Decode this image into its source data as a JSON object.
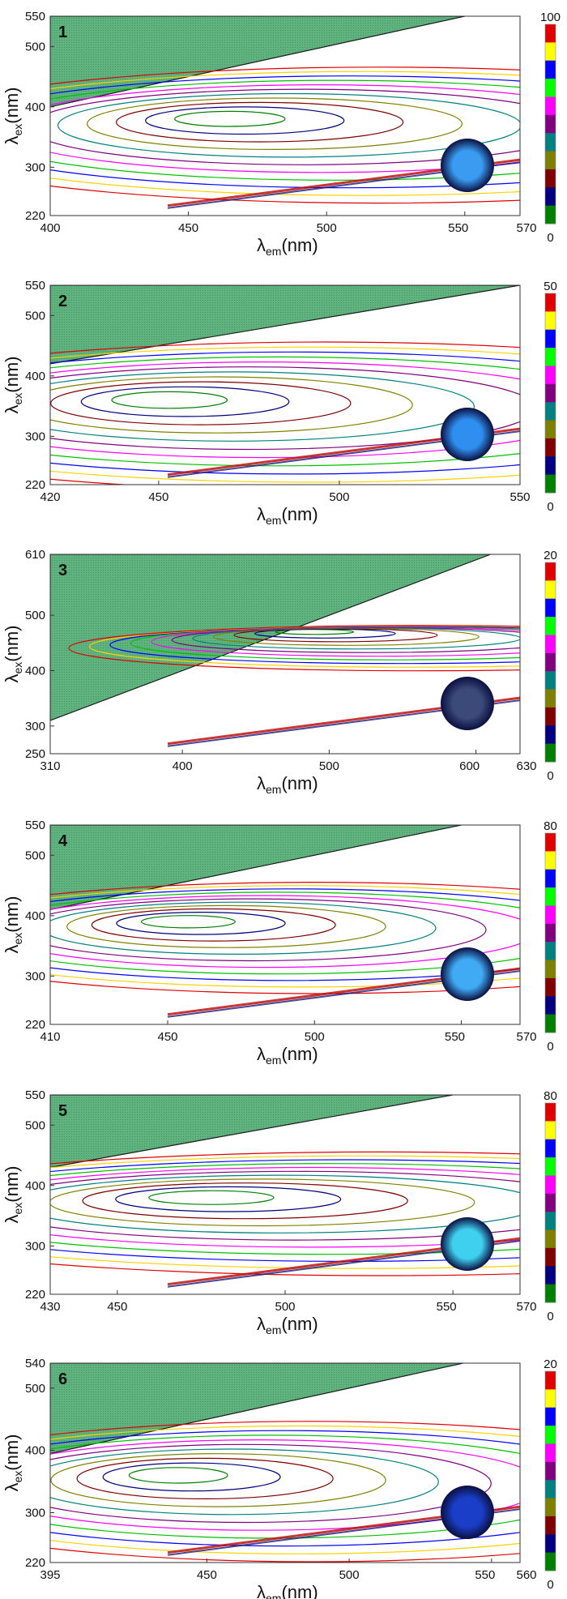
{
  "chart_data": [
    {
      "type": "contour",
      "panel_label": "1",
      "xlabel_main": "λ",
      "xlabel_sub": "em",
      "xlabel_unit": "(nm)",
      "ylabel_main": "λ",
      "ylabel_sub": "ex",
      "ylabel_unit": "(nm)",
      "xlim": [
        400,
        570
      ],
      "ylim": [
        220,
        550
      ],
      "x_ticks": [
        400,
        450,
        500,
        550,
        570
      ],
      "y_ticks": [
        220,
        300,
        400,
        500,
        550
      ],
      "colorbar_range": [
        0,
        100
      ],
      "colorbar_labels": [
        "100",
        "0"
      ],
      "peaks": [
        {
          "em": 465,
          "ex": 380,
          "rx": 30,
          "ry": 55
        }
      ],
      "inset_color": "#3a9bf0"
    },
    {
      "type": "contour",
      "panel_label": "2",
      "xlabel_main": "λ",
      "xlabel_sub": "em",
      "xlabel_unit": "(nm)",
      "ylabel_main": "λ",
      "ylabel_sub": "ex",
      "ylabel_unit": "(nm)",
      "xlim": [
        420,
        550
      ],
      "ylim": [
        220,
        550
      ],
      "x_ticks": [
        420,
        450,
        500,
        550
      ],
      "y_ticks": [
        220,
        300,
        400,
        500,
        550
      ],
      "colorbar_range": [
        0,
        50
      ],
      "colorbar_labels": [
        "50",
        "0"
      ],
      "peaks": [
        {
          "em": 453,
          "ex": 360,
          "rx": 24,
          "ry": 60
        }
      ],
      "inset_color": "#2f8ff0"
    },
    {
      "type": "contour",
      "panel_label": "3",
      "xlabel_main": "λ",
      "xlabel_sub": "em",
      "xlabel_unit": "(nm)",
      "ylabel_main": "λ",
      "ylabel_sub": "ex",
      "ylabel_unit": "(nm)",
      "xlim": [
        310,
        630
      ],
      "ylim": [
        250,
        610
      ],
      "x_ticks": [
        310,
        400,
        500,
        600,
        630
      ],
      "y_ticks": [
        250,
        300,
        400,
        500,
        610
      ],
      "colorbar_range": [
        0,
        20
      ],
      "colorbar_labels": [
        "20",
        "0"
      ],
      "peaks": [
        {
          "em": 490,
          "ex": 470,
          "rx": 40,
          "ry": 20
        }
      ],
      "inset_color": "#3c4a7a"
    },
    {
      "type": "contour",
      "panel_label": "4",
      "xlabel_main": "λ",
      "xlabel_sub": "em",
      "xlabel_unit": "(nm)",
      "ylabel_main": "λ",
      "ylabel_sub": "ex",
      "ylabel_unit": "(nm)",
      "xlim": [
        410,
        570
      ],
      "ylim": [
        220,
        550
      ],
      "x_ticks": [
        410,
        450,
        500,
        550,
        570
      ],
      "y_ticks": [
        220,
        300,
        400,
        500,
        550
      ],
      "colorbar_range": [
        0,
        80
      ],
      "colorbar_labels": [
        "80",
        "0"
      ],
      "peaks": [
        {
          "em": 457,
          "ex": 390,
          "rx": 24,
          "ry": 45
        }
      ],
      "inset_color": "#40aaf5"
    },
    {
      "type": "contour",
      "panel_label": "5",
      "xlabel_main": "λ",
      "xlabel_sub": "em",
      "xlabel_unit": "(nm)",
      "ylabel_main": "λ",
      "ylabel_sub": "ex",
      "ylabel_unit": "(nm)",
      "xlim": [
        430,
        570
      ],
      "ylim": [
        220,
        550
      ],
      "x_ticks": [
        430,
        450,
        500,
        550,
        570
      ],
      "y_ticks": [
        220,
        300,
        400,
        500,
        550
      ],
      "colorbar_range": [
        0,
        80
      ],
      "colorbar_labels": [
        "80",
        "0"
      ],
      "peaks": [
        {
          "em": 478,
          "ex": 380,
          "rx": 28,
          "ry": 50
        }
      ],
      "inset_color": "#3fd0f0"
    },
    {
      "type": "contour",
      "panel_label": "6",
      "xlabel_main": "λ",
      "xlabel_sub": "em",
      "xlabel_unit": "(nm)",
      "ylabel_main": "λ",
      "ylabel_sub": "ex",
      "ylabel_unit": "(nm)",
      "xlim": [
        395,
        560
      ],
      "ylim": [
        220,
        540
      ],
      "x_ticks": [
        395,
        450,
        500,
        550,
        560
      ],
      "y_ticks": [
        220,
        300,
        400,
        500,
        540
      ],
      "colorbar_range": [
        0,
        20
      ],
      "colorbar_labels": [
        "20",
        "0"
      ],
      "peaks": [
        {
          "em": 440,
          "ex": 360,
          "rx": 26,
          "ry": 55
        }
      ],
      "inset_color": "#1a3ec8"
    }
  ],
  "colorbar_colors": [
    "#e10000",
    "#ffff00",
    "#0000ff",
    "#00ff00",
    "#ff00ff",
    "#800080",
    "#008080",
    "#808000",
    "#800000",
    "#000080",
    "#008000"
  ],
  "fill_color": "#5fb37e",
  "contour_colors": [
    "#e10000",
    "#ffd000",
    "#0000ff",
    "#00c000",
    "#ff00ff",
    "#800080",
    "#008080",
    "#808000",
    "#800000",
    "#000080",
    "#008000"
  ]
}
